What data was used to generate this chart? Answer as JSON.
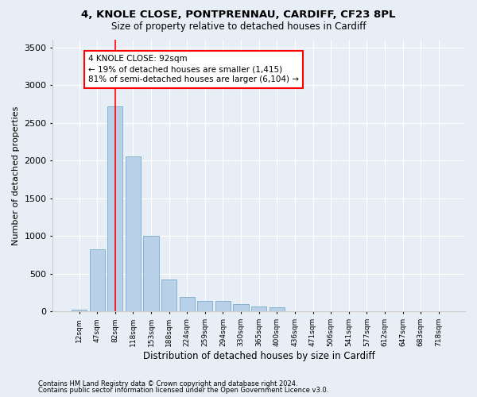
{
  "title1": "4, KNOLE CLOSE, PONTPRENNAU, CARDIFF, CF23 8PL",
  "title2": "Size of property relative to detached houses in Cardiff",
  "xlabel": "Distribution of detached houses by size in Cardiff",
  "ylabel": "Number of detached properties",
  "footnote1": "Contains HM Land Registry data © Crown copyright and database right 2024.",
  "footnote2": "Contains public sector information licensed under the Open Government Licence v3.0.",
  "bar_labels": [
    "12sqm",
    "47sqm",
    "82sqm",
    "118sqm",
    "153sqm",
    "188sqm",
    "224sqm",
    "259sqm",
    "294sqm",
    "330sqm",
    "365sqm",
    "400sqm",
    "436sqm",
    "471sqm",
    "506sqm",
    "541sqm",
    "577sqm",
    "612sqm",
    "647sqm",
    "683sqm",
    "718sqm"
  ],
  "bar_values": [
    30,
    820,
    2720,
    2050,
    1000,
    430,
    190,
    140,
    145,
    100,
    70,
    60,
    0,
    0,
    0,
    0,
    0,
    0,
    0,
    0,
    0
  ],
  "bar_color": "#b8d0e8",
  "bar_edge_color": "#7aaacb",
  "annotation_text": "4 KNOLE CLOSE: 92sqm\n← 19% of detached houses are smaller (1,415)\n81% of semi-detached houses are larger (6,104) →",
  "vline_x_index": 2,
  "bg_color": "#e8eef5",
  "plot_bg_color": "#e8eef5",
  "grid_color": "#ffffff",
  "ylim": [
    0,
    3600
  ],
  "yticks": [
    0,
    500,
    1000,
    1500,
    2000,
    2500,
    3000,
    3500
  ]
}
